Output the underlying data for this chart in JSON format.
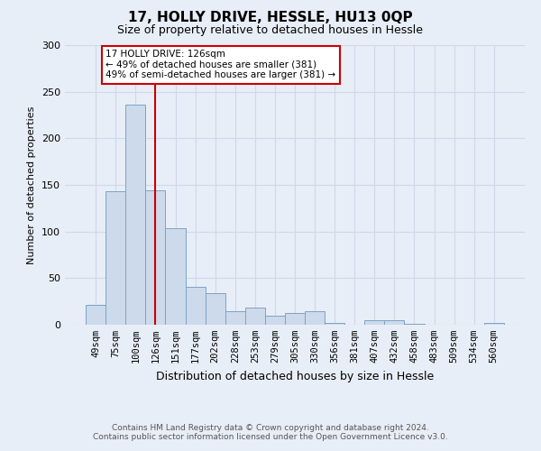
{
  "title": "17, HOLLY DRIVE, HESSLE, HU13 0QP",
  "subtitle": "Size of property relative to detached houses in Hessle",
  "xlabel": "Distribution of detached houses by size in Hessle",
  "ylabel": "Number of detached properties",
  "bar_labels": [
    "49sqm",
    "75sqm",
    "100sqm",
    "126sqm",
    "151sqm",
    "177sqm",
    "202sqm",
    "228sqm",
    "253sqm",
    "279sqm",
    "305sqm",
    "330sqm",
    "356sqm",
    "381sqm",
    "407sqm",
    "432sqm",
    "458sqm",
    "483sqm",
    "509sqm",
    "534sqm",
    "560sqm"
  ],
  "bar_heights": [
    21,
    143,
    236,
    144,
    104,
    41,
    34,
    15,
    18,
    10,
    13,
    15,
    2,
    0,
    5,
    5,
    1,
    0,
    0,
    0,
    2
  ],
  "bar_color": "#cddaeb",
  "bar_edge_color": "#7ba3c8",
  "vline_x": 3,
  "vline_color": "#cc0000",
  "ylim": [
    0,
    300
  ],
  "yticks": [
    0,
    50,
    100,
    150,
    200,
    250,
    300
  ],
  "annotation_title": "17 HOLLY DRIVE: 126sqm",
  "annotation_line1": "← 49% of detached houses are smaller (381)",
  "annotation_line2": "49% of semi-detached houses are larger (381) →",
  "annotation_box_color": "#ffffff",
  "annotation_box_edge": "#cc0000",
  "footer_line1": "Contains HM Land Registry data © Crown copyright and database right 2024.",
  "footer_line2": "Contains public sector information licensed under the Open Government Licence v3.0.",
  "background_color": "#e8eef7",
  "grid_color": "#d0d8e8",
  "title_fontsize": 11,
  "subtitle_fontsize": 9,
  "ylabel_fontsize": 8,
  "xlabel_fontsize": 9,
  "tick_fontsize": 7.5,
  "footer_fontsize": 6.5
}
